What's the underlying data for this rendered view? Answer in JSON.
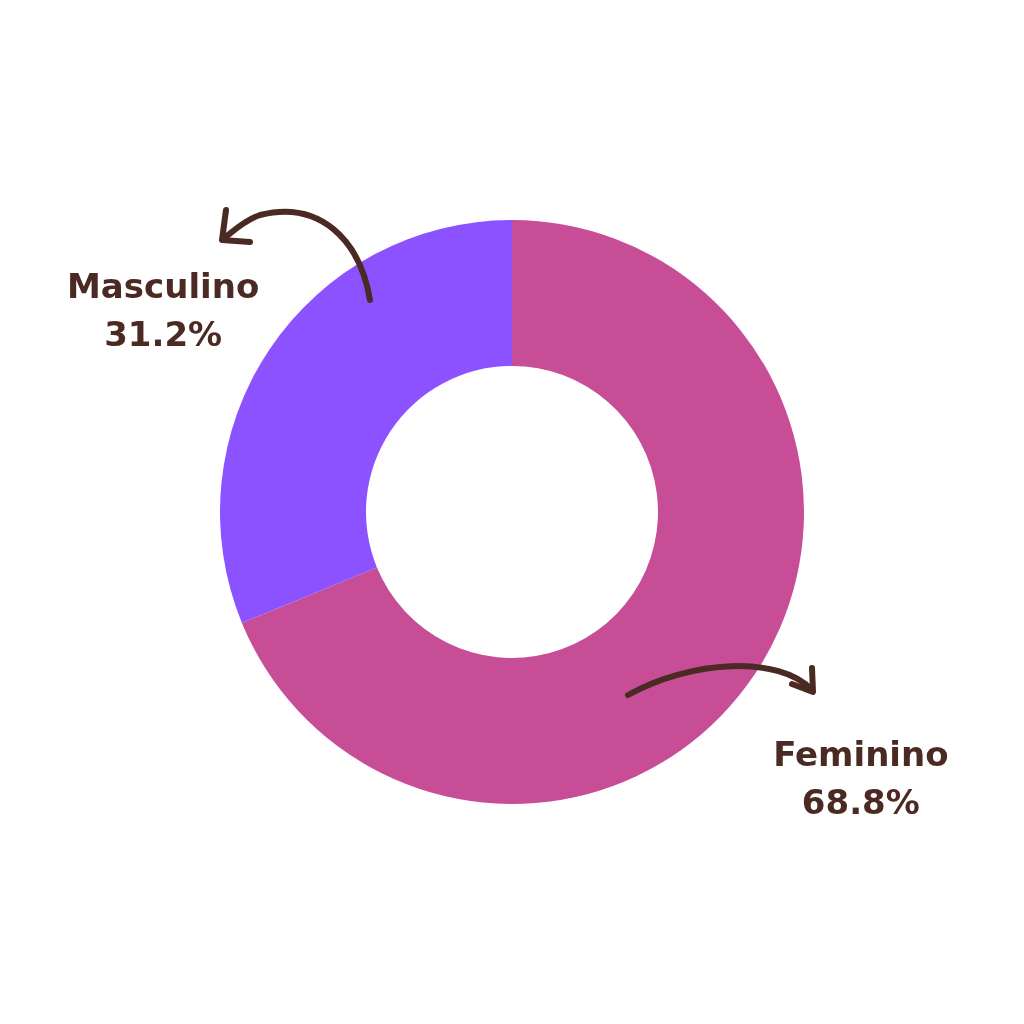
{
  "chart_data": {
    "type": "donut",
    "categories": [
      "Feminino",
      "Masculino"
    ],
    "values": [
      68.8,
      31.2
    ],
    "colors": [
      "#c84d97",
      "#8c52ff"
    ],
    "value_labels": [
      "68.8%",
      "31.2%"
    ]
  }
}
